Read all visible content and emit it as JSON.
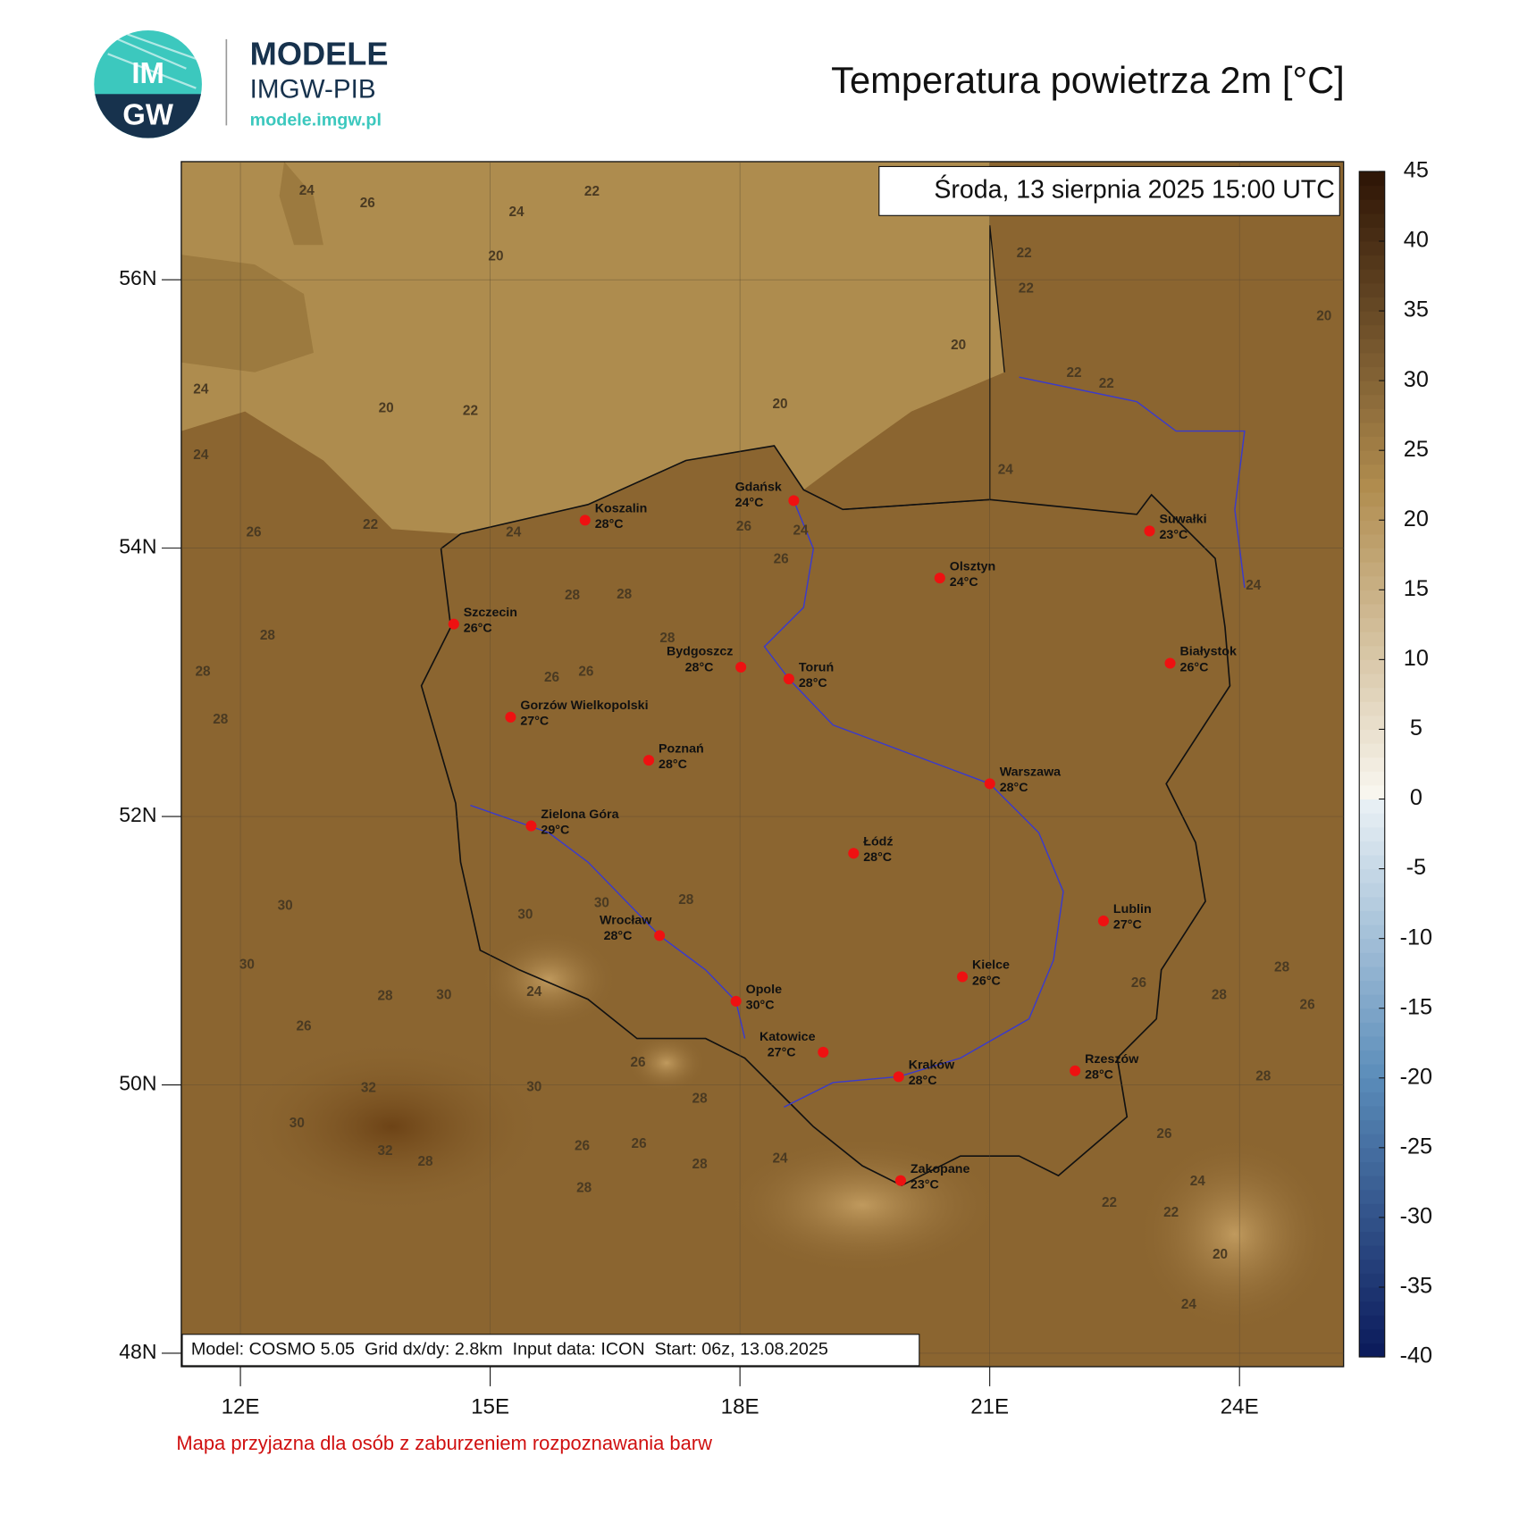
{
  "header": {
    "logo_top": "IM",
    "logo_bottom": "GW",
    "brand": "MODELE",
    "org": "IMGW-PIB",
    "url": "modele.imgw.pl"
  },
  "chart_data": {
    "type": "map",
    "title": "Temperatura powietrza 2m [°C]",
    "valid_time": "Środa, 13 sierpnia 2025 15:00 UTC",
    "model_info": "Model: COSMO 5.05  Grid dx/dy: 2.8km  Input data: ICON  Start: 06z, 13.08.2025",
    "note": "Mapa przyjazna dla osób z zaburzeniem rozpoznawania barw",
    "xlim": [
      11.29,
      25.25
    ],
    "xticks": [
      {
        "value": 12,
        "label": "12E"
      },
      {
        "value": 15,
        "label": "15E"
      },
      {
        "value": 18,
        "label": "18E"
      },
      {
        "value": 21,
        "label": "21E"
      },
      {
        "value": 24,
        "label": "24E"
      }
    ],
    "ylim": [
      47.9,
      56.88
    ],
    "yticks": [
      {
        "value": 56,
        "label": "56N"
      },
      {
        "value": 54,
        "label": "54N"
      },
      {
        "value": 52,
        "label": "52N"
      },
      {
        "value": 50,
        "label": "50N"
      },
      {
        "value": 48,
        "label": "48N"
      }
    ],
    "grid": true,
    "colorbar": {
      "ylim": [
        -40,
        45
      ],
      "yticks": [
        45,
        40,
        35,
        30,
        25,
        20,
        15,
        10,
        5,
        0,
        -5,
        -10,
        -15,
        -20,
        -25,
        -30,
        -35,
        -40
      ]
    },
    "cities": {
      "names": [
        "Koszalin",
        "Gdańsk",
        "Suwałki",
        "Olsztyn",
        "Szczecin",
        "Bydgoszcz",
        "Toruń",
        "Białystok",
        "Gorzów Wielkopolski",
        "Poznań",
        "Warszawa",
        "Zielona Góra",
        "Łódź",
        "Lublin",
        "Wrocław",
        "Kielce",
        "Opole",
        "Katowice",
        "Kraków",
        "Rzeszów",
        "Zakopane"
      ],
      "values": [
        28,
        24,
        23,
        24,
        26,
        28,
        28,
        26,
        27,
        28,
        28,
        29,
        28,
        27,
        28,
        26,
        30,
        27,
        28,
        28,
        23
      ],
      "value_labels": [
        "28°C",
        "24°C",
        "23°C",
        "24°C",
        "26°C",
        "28°C",
        "28°C",
        "26°C",
        "27°C",
        "28°C",
        "28°C",
        "29°C",
        "28°C",
        "27°C",
        "28°C",
        "26°C",
        "30°C",
        "27°C",
        "28°C",
        "28°C",
        "23°C"
      ]
    },
    "contour_labels": [
      24,
      26,
      24,
      22,
      20,
      22,
      24,
      20,
      20,
      22,
      22,
      20,
      22,
      22,
      20,
      22,
      24,
      24,
      24,
      26,
      26,
      24,
      26,
      28,
      28,
      28,
      26,
      28,
      26,
      28,
      28,
      30,
      30,
      30,
      28,
      30,
      32,
      30,
      32,
      28,
      26,
      30,
      28,
      30,
      28,
      26,
      24,
      24,
      26,
      26,
      28,
      28,
      22,
      22,
      20,
      24,
      26,
      28,
      26,
      28,
      24,
      26,
      28,
      24
    ]
  }
}
